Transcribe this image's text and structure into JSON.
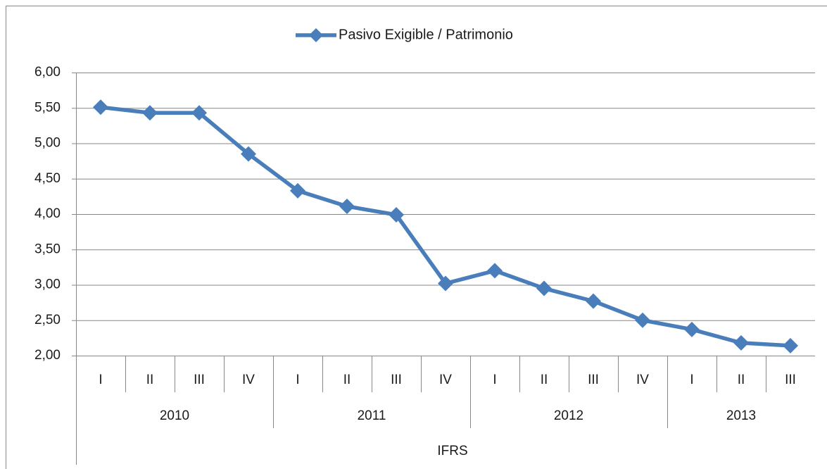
{
  "chart_data": {
    "type": "line",
    "category_group_title": "IFRS",
    "category_groups": [
      {
        "name": "2010",
        "categories": [
          "I",
          "II",
          "III",
          "IV"
        ]
      },
      {
        "name": "2011",
        "categories": [
          "I",
          "II",
          "III",
          "IV"
        ]
      },
      {
        "name": "2012",
        "categories": [
          "I",
          "II",
          "III",
          "IV"
        ]
      },
      {
        "name": "2013",
        "categories": [
          "I",
          "II",
          "III"
        ]
      }
    ],
    "series": [
      {
        "name": "Pasivo Exigible / Patrimonio",
        "color": "#4a7ebb",
        "values": [
          5.51,
          5.43,
          5.43,
          4.85,
          4.33,
          4.11,
          3.99,
          3.02,
          3.2,
          2.95,
          2.77,
          2.5,
          2.37,
          2.18,
          2.14
        ]
      }
    ],
    "ylim": [
      2,
      6
    ],
    "yticks": [
      {
        "value": 2,
        "label": "2,00"
      },
      {
        "value": 2.5,
        "label": "2,50"
      },
      {
        "value": 3,
        "label": "3,00"
      },
      {
        "value": 3.5,
        "label": "3,50"
      },
      {
        "value": 4,
        "label": "4,00"
      },
      {
        "value": 4.5,
        "label": "4,50"
      },
      {
        "value": 5,
        "label": "5,00"
      },
      {
        "value": 5.5,
        "label": "5,50"
      },
      {
        "value": 6,
        "label": "6,00"
      }
    ],
    "grid": true,
    "legend": "top"
  }
}
